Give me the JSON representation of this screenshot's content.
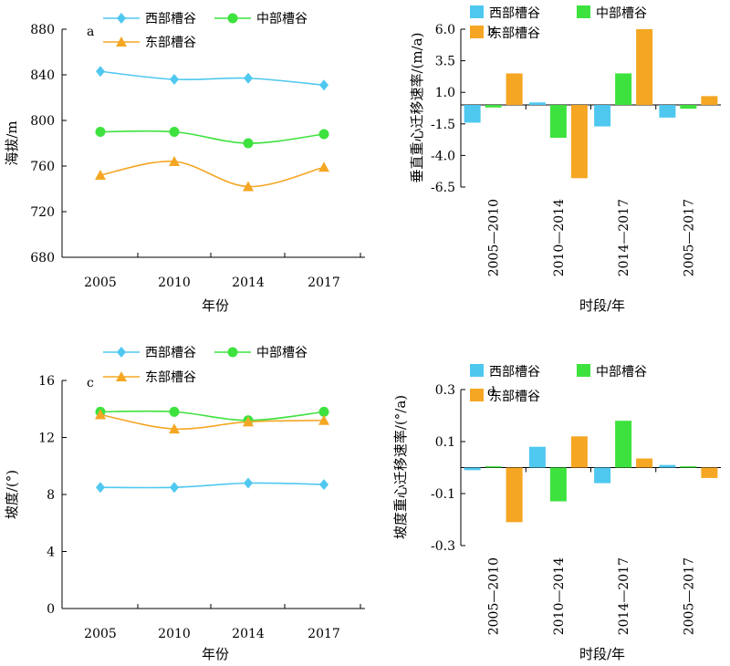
{
  "chart_data": [
    {
      "type": "line",
      "panel_label": "a",
      "title": "",
      "xlabel": "年份",
      "ylabel": "海拔/m",
      "x": [
        "2005",
        "2010",
        "2014",
        "2017"
      ],
      "ylim": [
        680,
        880
      ],
      "yticks": [
        680,
        720,
        760,
        800,
        840,
        880
      ],
      "legend": "top",
      "grid": false,
      "series": [
        {
          "name": "西部槽谷",
          "color": "#4fc8f0",
          "marker": "diamond",
          "values": [
            843,
            836,
            837,
            831
          ]
        },
        {
          "name": "中部槽谷",
          "color": "#3ee23e",
          "marker": "circle",
          "values": [
            790,
            790,
            780,
            788
          ]
        },
        {
          "name": "东部槽谷",
          "color": "#f5a623",
          "marker": "triangle",
          "values": [
            752,
            764,
            742,
            759
          ]
        }
      ]
    },
    {
      "type": "bar",
      "panel_label": "b",
      "title": "",
      "xlabel": "时段/年",
      "ylabel": "垂直重心迁移速率/(m/a)",
      "categories": [
        "2005—2010",
        "2010—2014",
        "2014—2017",
        "2005—2017"
      ],
      "ylim": [
        -6.5,
        6.0
      ],
      "yticks": [
        "6.0",
        "3.5",
        "1.0",
        "-1.5",
        "-4.0",
        "-6.5"
      ],
      "legend": "top",
      "grid": false,
      "series": [
        {
          "name": "西部槽谷",
          "color": "#4fc8f0",
          "values": [
            -1.4,
            0.2,
            -1.7,
            -1.0
          ]
        },
        {
          "name": "中部槽谷",
          "color": "#3ee23e",
          "values": [
            -0.2,
            -2.6,
            2.5,
            -0.3
          ]
        },
        {
          "name": "东部槽谷",
          "color": "#f5a623",
          "values": [
            2.5,
            -5.8,
            6.0,
            0.7
          ]
        }
      ]
    },
    {
      "type": "line",
      "panel_label": "c",
      "title": "",
      "xlabel": "年份",
      "ylabel": "坡度/(°)",
      "x": [
        "2005",
        "2010",
        "2014",
        "2017"
      ],
      "ylim": [
        0,
        16
      ],
      "yticks": [
        0,
        4,
        8,
        12,
        16
      ],
      "legend": "top",
      "grid": false,
      "series": [
        {
          "name": "西部槽谷",
          "color": "#4fc8f0",
          "marker": "diamond",
          "values": [
            8.5,
            8.5,
            8.8,
            8.7
          ]
        },
        {
          "name": "中部槽谷",
          "color": "#3ee23e",
          "marker": "circle",
          "values": [
            13.8,
            13.8,
            13.2,
            13.8
          ]
        },
        {
          "name": "东部槽谷",
          "color": "#f5a623",
          "marker": "triangle",
          "values": [
            13.6,
            12.6,
            13.1,
            13.2
          ]
        }
      ]
    },
    {
      "type": "bar",
      "panel_label": "d",
      "title": "",
      "xlabel": "时段/年",
      "ylabel": "坡度重心迁移速率/(°/a)",
      "categories": [
        "2005—2010",
        "2010—2014",
        "2014—2017",
        "2005—2017"
      ],
      "ylim": [
        -0.3,
        0.3
      ],
      "yticks": [
        "0.3",
        "0.1",
        "-0.1",
        "-0.3"
      ],
      "legend": "top",
      "grid": false,
      "series": [
        {
          "name": "西部槽谷",
          "color": "#4fc8f0",
          "values": [
            -0.01,
            0.08,
            -0.06,
            0.01
          ]
        },
        {
          "name": "中部槽谷",
          "color": "#3ee23e",
          "values": [
            0.005,
            -0.13,
            0.18,
            0.005
          ]
        },
        {
          "name": "东部槽谷",
          "color": "#f5a623",
          "values": [
            -0.21,
            0.12,
            0.035,
            -0.04
          ]
        }
      ]
    }
  ]
}
